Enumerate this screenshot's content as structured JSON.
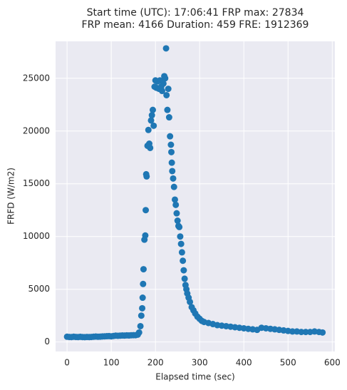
{
  "chart_data": {
    "type": "scatter",
    "title": [
      "Start time (UTC): 17:06:41 FRP max: 27834",
      "FRP mean: 4166 Duration: 459 FRE: 1912369"
    ],
    "x_label": "Elapsed time (sec)",
    "y_label": "FRFD (W/m2)",
    "color": "#1f77b4",
    "grid": true,
    "xlim": [
      -26,
      606
    ],
    "ylim": [
      -900,
      28500
    ],
    "xticks": [
      0,
      100,
      200,
      300,
      400,
      500,
      600
    ],
    "yticks": [
      0,
      5000,
      10000,
      15000,
      20000,
      25000
    ],
    "x": [
      0,
      5,
      10,
      15,
      20,
      25,
      30,
      35,
      40,
      45,
      50,
      55,
      60,
      65,
      70,
      75,
      80,
      85,
      90,
      95,
      100,
      105,
      110,
      115,
      120,
      125,
      130,
      135,
      140,
      145,
      150,
      155,
      160,
      163,
      166,
      168,
      170,
      171,
      172,
      173,
      175,
      177,
      178,
      179,
      180,
      182,
      184,
      186,
      188,
      190,
      192,
      194,
      196,
      198,
      200,
      202,
      205,
      208,
      210,
      213,
      215,
      218,
      220,
      222,
      224,
      225,
      227,
      229,
      231,
      233,
      235,
      236,
      237,
      238,
      240,
      242,
      244,
      246,
      248,
      250,
      252,
      254,
      256,
      258,
      260,
      262,
      264,
      266,
      268,
      270,
      272,
      275,
      278,
      282,
      286,
      290,
      295,
      300,
      305,
      310,
      320,
      330,
      340,
      350,
      360,
      370,
      380,
      390,
      400,
      410,
      420,
      430,
      440,
      450,
      460,
      470,
      480,
      490,
      500,
      510,
      520,
      530,
      540,
      550,
      560,
      570,
      578
    ],
    "values": [
      500,
      480,
      470,
      500,
      480,
      470,
      490,
      470,
      460,
      480,
      470,
      480,
      500,
      520,
      500,
      510,
      530,
      540,
      550,
      560,
      540,
      570,
      600,
      590,
      600,
      620,
      610,
      630,
      620,
      640,
      650,
      650,
      700,
      900,
      1500,
      2500,
      3200,
      4200,
      5500,
      6900,
      9700,
      10100,
      12500,
      15900,
      15700,
      18600,
      20100,
      18800,
      18400,
      21000,
      21500,
      22000,
      20500,
      24200,
      24800,
      24100,
      24700,
      24000,
      24800,
      24200,
      23800,
      24500,
      25200,
      25000,
      27834,
      23400,
      22000,
      24000,
      21300,
      19500,
      18700,
      18000,
      17000,
      16200,
      15500,
      14700,
      13500,
      13000,
      12200,
      11500,
      11000,
      10900,
      10000,
      9300,
      8500,
      7700,
      6800,
      6000,
      5400,
      5000,
      4600,
      4200,
      3800,
      3300,
      3000,
      2700,
      2400,
      2200,
      2000,
      1900,
      1800,
      1700,
      1600,
      1550,
      1500,
      1450,
      1400,
      1350,
      1300,
      1250,
      1200,
      1150,
      1350,
      1300,
      1250,
      1200,
      1150,
      1100,
      1050,
      1000,
      1000,
      950,
      950,
      950,
      1000,
      950,
      900
    ]
  }
}
